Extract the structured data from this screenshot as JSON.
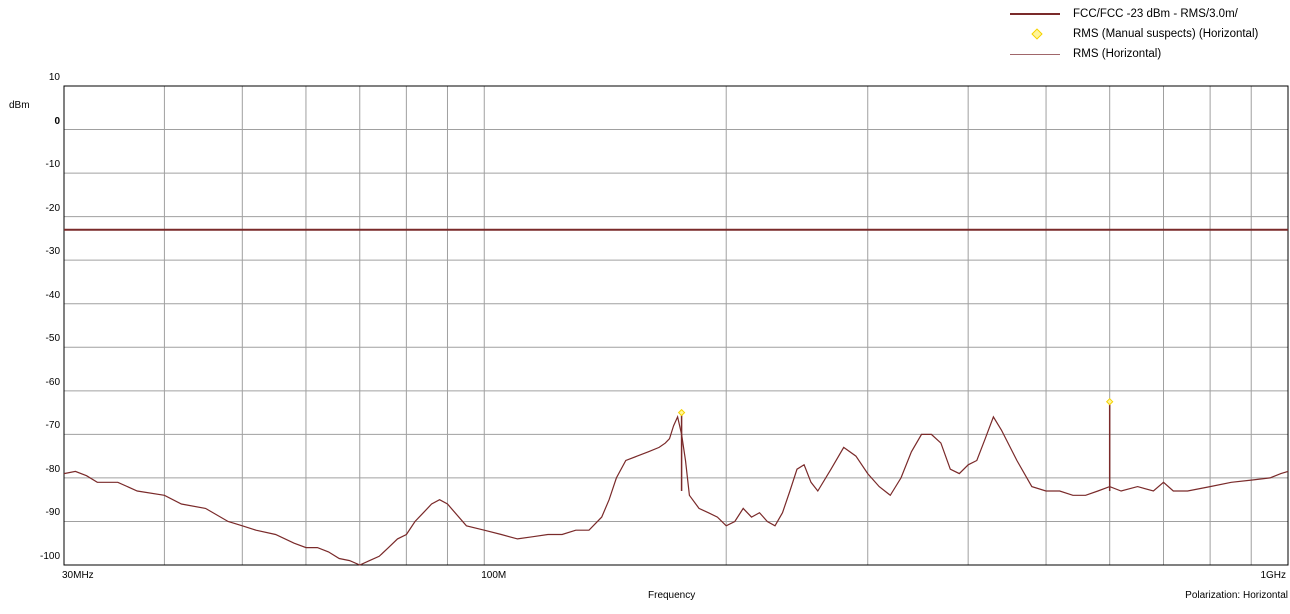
{
  "legend": {
    "items": [
      {
        "label": "FCC/FCC -23 dBm  - RMS/3.0m/",
        "style": "line-thick"
      },
      {
        "label": "RMS (Manual suspects) (Horizontal)",
        "style": "diamond"
      },
      {
        "label": "RMS (Horizontal)",
        "style": "line-thin"
      }
    ]
  },
  "axis": {
    "y_unit": "dBm",
    "x_label": "Frequency",
    "polarization": "Polarization: Horizontal",
    "x_tick_labels": [
      {
        "value": 30,
        "label": "30MHz"
      },
      {
        "value": 100,
        "label": "100M"
      },
      {
        "value": 1000,
        "label": "1GHz"
      }
    ]
  },
  "colors": {
    "limit": "#7a2a2a",
    "trace": "#7a2a2a",
    "marker": "#f5d200",
    "grid": "#a0a0a0"
  },
  "chart_data": {
    "type": "line",
    "xscale": "log",
    "xlim": [
      30,
      1000
    ],
    "ylim": [
      -100,
      10
    ],
    "x_gridlines": [
      40,
      50,
      60,
      70,
      80,
      90,
      100,
      200,
      300,
      400,
      500,
      600,
      700,
      800,
      900
    ],
    "y_ticks": [
      10,
      0,
      -10,
      -20,
      -30,
      -40,
      -50,
      -60,
      -70,
      -80,
      -90,
      -100
    ],
    "grid": true,
    "legend_position": "top-right",
    "series": [
      {
        "name": "FCC/FCC -23 dBm  - RMS/3.0m/",
        "x": [
          30,
          1000
        ],
        "y": [
          -23,
          -23
        ]
      },
      {
        "name": "RMS (Horizontal)",
        "x": [
          30,
          31,
          32,
          33,
          35,
          37,
          40,
          42,
          45,
          48,
          50,
          52,
          55,
          58,
          60,
          62,
          64,
          66,
          68,
          70,
          72,
          74,
          76,
          78,
          80,
          82,
          84,
          86,
          88,
          90,
          95,
          100,
          105,
          110,
          115,
          120,
          125,
          130,
          135,
          140,
          143,
          146,
          150,
          155,
          160,
          165,
          168,
          170,
          172,
          174,
          176,
          178,
          180,
          185,
          190,
          195,
          200,
          205,
          210,
          215,
          220,
          225,
          230,
          235,
          240,
          245,
          250,
          255,
          260,
          270,
          280,
          290,
          300,
          310,
          320,
          330,
          340,
          350,
          360,
          370,
          380,
          390,
          400,
          410,
          420,
          430,
          440,
          460,
          480,
          500,
          520,
          540,
          560,
          580,
          600,
          620,
          650,
          680,
          700,
          720,
          750,
          800,
          850,
          900,
          950,
          980,
          1000
        ],
        "y": [
          -79,
          -78.5,
          -79.5,
          -81,
          -81,
          -83,
          -84,
          -86,
          -87,
          -90,
          -91,
          -92,
          -93,
          -95,
          -96,
          -96,
          -97,
          -98.5,
          -99,
          -100,
          -99,
          -98,
          -96,
          -94,
          -93,
          -90,
          -88,
          -86,
          -85,
          -86,
          -91,
          -92,
          -93,
          -94,
          -93.5,
          -93,
          -93,
          -92,
          -92,
          -89,
          -85,
          -80,
          -76,
          -75,
          -74,
          -73,
          -72,
          -71,
          -68,
          -66,
          -70,
          -76,
          -84,
          -87,
          -88,
          -89,
          -91,
          -90,
          -87,
          -89,
          -88,
          -90,
          -91,
          -88,
          -83,
          -78,
          -77,
          -81,
          -83,
          -78,
          -73,
          -75,
          -79,
          -82,
          -84,
          -80,
          -74,
          -70,
          -70,
          -72,
          -78,
          -79,
          -77,
          -76,
          -71,
          -66,
          -69,
          -76,
          -82,
          -83,
          -83,
          -84,
          -84,
          -83,
          -82,
          -83,
          -82,
          -83,
          -81,
          -83,
          -83,
          -82,
          -81,
          -80.5,
          -80,
          -79,
          -78.5
        ]
      },
      {
        "name": "RMS (Manual suspects) (Horizontal)",
        "type": "scatter",
        "x": [
          176,
          600
        ],
        "y": [
          -65,
          -62.5
        ]
      }
    ]
  }
}
